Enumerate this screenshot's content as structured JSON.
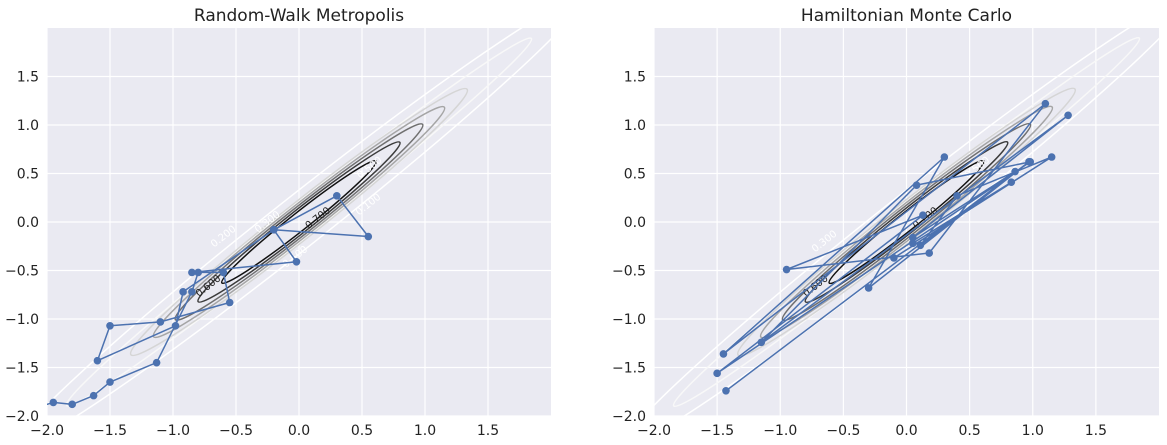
{
  "chart_data": [
    {
      "type": "line",
      "title": "Random-Walk Metropolis",
      "xlabel": "",
      "ylabel": "",
      "xlim": [
        -2.0,
        2.0
      ],
      "ylim": [
        -2.0,
        2.0
      ],
      "xticks": [
        -2.0,
        -1.5,
        -1.0,
        -0.5,
        0.0,
        0.5,
        1.0,
        1.5
      ],
      "yticks": [
        -2.0,
        -1.5,
        -1.0,
        -0.5,
        0.0,
        0.5,
        1.0,
        1.5
      ],
      "xtick_labels": [
        "−2.0",
        "−1.5",
        "−1.0",
        "−0.5",
        "0.0",
        "0.5",
        "1.0",
        "1.5"
      ],
      "ytick_labels": [
        "−2.0",
        "−1.5",
        "−1.0",
        "−0.5",
        "0.0",
        "0.5",
        "1.0",
        "1.5"
      ],
      "grid": true,
      "contour_labels": [
        {
          "text": "0.700",
          "x": 0.15,
          "y": 0.04
        },
        {
          "text": "0.600",
          "x": -0.72,
          "y": -0.66
        },
        {
          "text": "0.500",
          "x": 0.56,
          "y": 0.56
        },
        {
          "text": "0.500",
          "x": -0.03,
          "y": -0.36
        },
        {
          "text": "0.300",
          "x": -0.25,
          "y": 0.0
        },
        {
          "text": "0.200",
          "x": -0.6,
          "y": -0.15
        },
        {
          "text": "0.100",
          "x": 0.55,
          "y": 0.18
        }
      ],
      "series": [
        {
          "points": [
            [
              -2.05,
              -1.9
            ],
            [
              -1.95,
              -1.86
            ],
            [
              -1.8,
              -1.88
            ],
            [
              -1.63,
              -1.79
            ],
            [
              -1.5,
              -1.65
            ],
            [
              -1.13,
              -1.45
            ],
            [
              -0.85,
              -0.72
            ],
            [
              -0.8,
              -0.52
            ],
            [
              -0.6,
              -0.52
            ],
            [
              -0.55,
              -0.83
            ],
            [
              -1.1,
              -1.03
            ],
            [
              -1.5,
              -1.07
            ],
            [
              -1.6,
              -1.43
            ],
            [
              -0.98,
              -1.07
            ],
            [
              -0.92,
              -0.72
            ],
            [
              -0.2,
              -0.08
            ],
            [
              0.3,
              0.27
            ],
            [
              0.55,
              -0.15
            ],
            [
              -0.2,
              -0.08
            ],
            [
              -0.02,
              -0.41
            ],
            [
              -0.85,
              -0.52
            ]
          ]
        }
      ]
    },
    {
      "type": "line",
      "title": "Hamiltonian Monte Carlo",
      "xlabel": "",
      "ylabel": "",
      "xlim": [
        -2.0,
        2.0
      ],
      "ylim": [
        -2.0,
        2.0
      ],
      "xticks": [
        -2.0,
        -1.5,
        -1.0,
        -0.5,
        0.0,
        0.5,
        1.0,
        1.5
      ],
      "yticks": [
        -2.0,
        -1.5,
        -1.0,
        -0.5,
        0.0,
        0.5,
        1.0,
        1.5
      ],
      "xtick_labels": [
        "−2.0",
        "−1.5",
        "−1.0",
        "−0.5",
        "0.0",
        "0.5",
        "1.0",
        "1.5"
      ],
      "ytick_labels": [
        "−2.0",
        "−1.5",
        "−1.0",
        "−0.5",
        "0.0",
        "0.5",
        "1.0",
        "1.5"
      ],
      "grid": true,
      "contour_labels": [
        {
          "text": "0.700",
          "x": 0.15,
          "y": 0.04
        },
        {
          "text": "0.600",
          "x": -0.72,
          "y": -0.66
        },
        {
          "text": "0.500",
          "x": 0.56,
          "y": 0.56
        },
        {
          "text": "0.300",
          "x": -0.65,
          "y": -0.2
        },
        {
          "text": "0.100",
          "x": 0.5,
          "y": 0.15
        }
      ],
      "series": [
        {
          "points": [
            [
              -1.43,
              -1.74
            ],
            [
              0.97,
              0.62
            ],
            [
              -0.3,
              -0.68
            ],
            [
              0.3,
              0.67
            ],
            [
              -1.45,
              -1.36
            ],
            [
              1.1,
              1.22
            ],
            [
              0.18,
              -0.32
            ],
            [
              -0.95,
              -0.49
            ],
            [
              0.13,
              0.07
            ],
            [
              -1.5,
              -1.56
            ],
            [
              0.98,
              0.62
            ],
            [
              0.08,
              0.38
            ],
            [
              -1.15,
              -1.24
            ],
            [
              1.28,
              1.1
            ],
            [
              0.05,
              -0.16
            ],
            [
              0.86,
              0.52
            ],
            [
              0.11,
              -0.24
            ],
            [
              0.4,
              0.27
            ],
            [
              1.15,
              0.67
            ],
            [
              -0.1,
              -0.37
            ],
            [
              0.83,
              0.41
            ],
            [
              0.05,
              -0.22
            ]
          ]
        }
      ]
    }
  ]
}
